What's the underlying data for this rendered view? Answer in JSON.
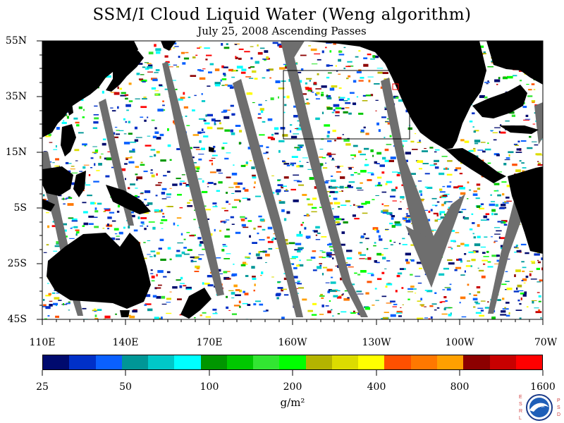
{
  "title": "SSM/I Cloud Liquid Water (Weng algorithm)",
  "subtitle": "July 25, 2008  Ascending Passes",
  "map": {
    "lat_labels": [
      "55N",
      "35N",
      "15N",
      "5S",
      "25S",
      "45S"
    ],
    "lon_labels": [
      "110E",
      "140E",
      "170E",
      "160W",
      "130W",
      "100W",
      "70W"
    ],
    "background_color": "#ffffff",
    "land_color": "#000000",
    "gap_color": "#6e6e6e",
    "highlight_box_color": "#000000",
    "marker_color": "#ff0000"
  },
  "colorbar": {
    "colors": [
      "#000a6e",
      "#0030c8",
      "#0a60ff",
      "#009696",
      "#00c8c8",
      "#00ffff",
      "#009600",
      "#00c800",
      "#32e632",
      "#00ff00",
      "#b4b400",
      "#dcdc00",
      "#ffff00",
      "#ff5000",
      "#ff7800",
      "#ffa000",
      "#8c0000",
      "#c80000",
      "#ff0000"
    ],
    "tick_labels": [
      "25",
      "50",
      "100",
      "200",
      "400",
      "800",
      "1600"
    ],
    "units": "g/m²"
  },
  "logo": {
    "left_letters": "ESRL",
    "right_letters": "PSD",
    "emblem_text": "NOAA"
  }
}
